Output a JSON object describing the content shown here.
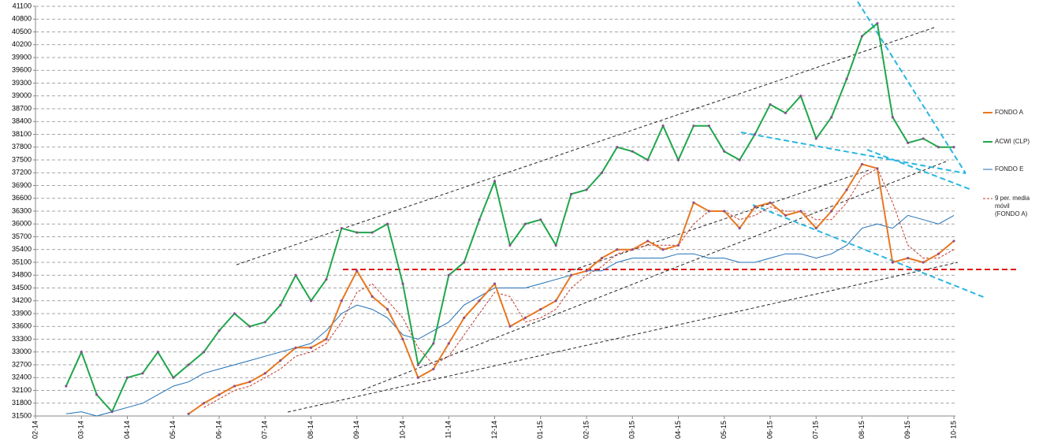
{
  "chart_data": {
    "type": "line",
    "categories": [
      "02-14",
      null,
      null,
      "03-14",
      null,
      null,
      "04-14",
      null,
      null,
      "05-14",
      null,
      null,
      "06-14",
      null,
      null,
      "07-14",
      null,
      null,
      "08-14",
      null,
      null,
      "09-14",
      null,
      null,
      "10-14",
      null,
      null,
      "11-14",
      null,
      null,
      "12-14",
      null,
      null,
      "01-15",
      null,
      null,
      "02-15",
      null,
      null,
      "03-15",
      null,
      null,
      "04-15",
      null,
      null,
      "05-15",
      null,
      null,
      "06-15",
      null,
      null,
      "07-15",
      null,
      null,
      "08-15",
      null,
      null,
      "09-15",
      null,
      null,
      "10-15"
    ],
    "series": [
      {
        "name": "FONDO A",
        "color": "#e87722",
        "line_style": "solid",
        "markers": true,
        "values": [
          null,
          null,
          null,
          null,
          null,
          null,
          null,
          null,
          null,
          null,
          31550,
          31800,
          32000,
          32200,
          32300,
          32500,
          32800,
          33100,
          33100,
          33300,
          34200,
          34900,
          34300,
          34000,
          33300,
          32400,
          32600,
          33200,
          33800,
          34200,
          34600,
          33600,
          33800,
          34000,
          34200,
          34800,
          34900,
          35200,
          35400,
          35400,
          35600,
          35400,
          35500,
          36500,
          36300,
          36300,
          35900,
          36400,
          36500,
          36200,
          36300,
          35900,
          36300,
          36800,
          37400,
          37300,
          35100,
          35200,
          35100,
          35300,
          35600
        ]
      },
      {
        "name": "ACWI (CLP)",
        "color": "#1fa64a",
        "line_style": "solid",
        "markers": true,
        "values": [
          null,
          null,
          32200,
          33000,
          32000,
          31600,
          32400,
          32500,
          33000,
          32400,
          32700,
          33000,
          33500,
          33900,
          33600,
          33700,
          34100,
          34800,
          34200,
          34700,
          35900,
          35800,
          35800,
          36000,
          34600,
          32700,
          33200,
          34800,
          35100,
          36100,
          37000,
          35500,
          36000,
          36100,
          35500,
          36700,
          36800,
          37200,
          37800,
          37700,
          37500,
          38300,
          37500,
          38300,
          38300,
          37700,
          37500,
          38100,
          38800,
          38600,
          39000,
          38000,
          38500,
          39400,
          40400,
          40700,
          38500,
          37900,
          38000,
          37800,
          37800
        ]
      },
      {
        "name": "FONDO E",
        "color": "#1f6fb5",
        "line_style": "solid",
        "markers": false,
        "values": [
          null,
          null,
          31550,
          31600,
          31500,
          31600,
          31700,
          31800,
          32000,
          32200,
          32300,
          32500,
          32600,
          32700,
          32800,
          32900,
          33000,
          33100,
          33200,
          33500,
          33900,
          34100,
          34000,
          33800,
          33400,
          33300,
          33500,
          33700,
          34100,
          34300,
          34500,
          34500,
          34500,
          34600,
          34700,
          34800,
          34900,
          34900,
          35100,
          35200,
          35200,
          35200,
          35300,
          35300,
          35200,
          35200,
          35100,
          35100,
          35200,
          35300,
          35300,
          35200,
          35300,
          35500,
          35900,
          36000,
          35900,
          36200,
          36100,
          36000,
          36200
        ]
      },
      {
        "name": "9 per. media móvil (FONDO A)",
        "color": "#c0392b",
        "line_style": "dashed",
        "markers": false,
        "values": [
          null,
          null,
          null,
          null,
          null,
          null,
          null,
          null,
          null,
          null,
          null,
          31700,
          31900,
          32100,
          32200,
          32400,
          32600,
          32900,
          33000,
          33200,
          33700,
          34400,
          34600,
          34200,
          33800,
          33100,
          32700,
          32900,
          33400,
          33900,
          34400,
          34300,
          33700,
          33800,
          34000,
          34500,
          34800,
          35000,
          35300,
          35400,
          35500,
          35500,
          35500,
          36000,
          36300,
          36300,
          36100,
          36200,
          36400,
          36300,
          36300,
          36100,
          36100,
          36500,
          37100,
          37300,
          36500,
          35500,
          35200,
          35200,
          35400
        ]
      }
    ],
    "ylim": [
      31500,
      41100
    ],
    "yticks": [
      31500,
      31800,
      32100,
      32400,
      32700,
      33000,
      33300,
      33600,
      33900,
      34200,
      34500,
      34800,
      35100,
      35400,
      35700,
      36000,
      36300,
      36600,
      36900,
      37200,
      37500,
      37800,
      38100,
      38400,
      38700,
      39000,
      39300,
      39600,
      39900,
      40200,
      40500,
      40800,
      41100
    ],
    "grid": true,
    "legend": "right"
  }
}
